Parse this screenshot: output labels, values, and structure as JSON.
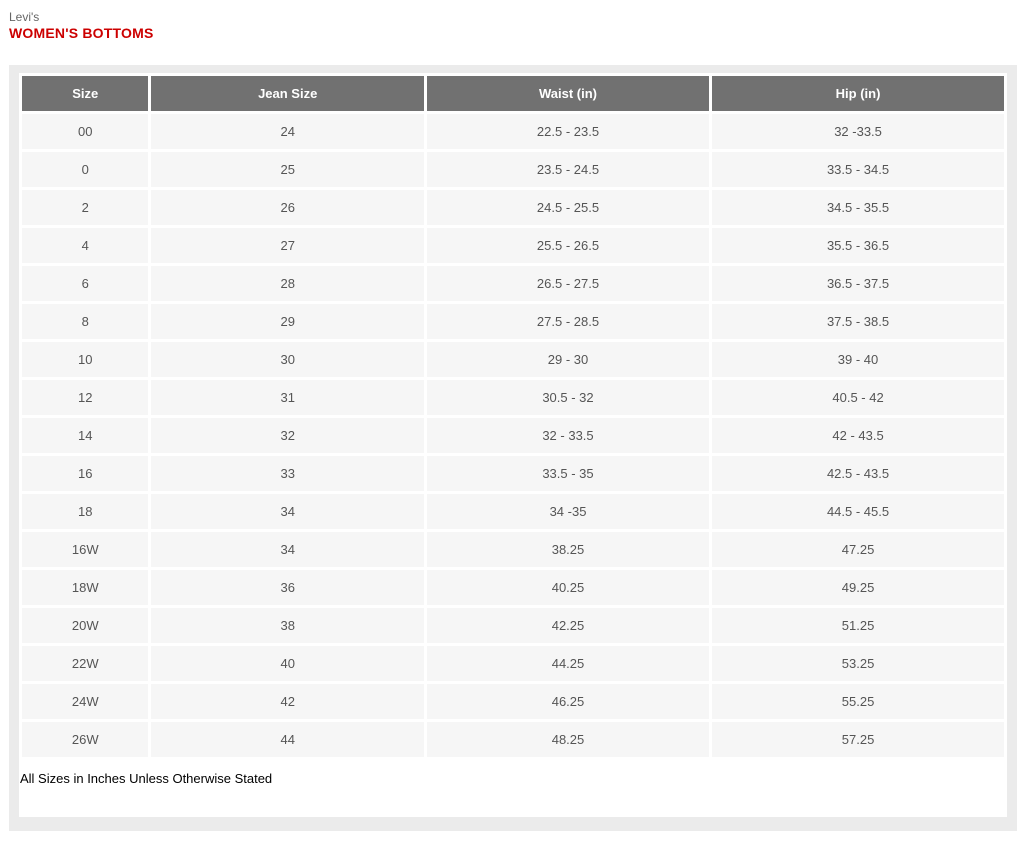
{
  "page": {
    "brand": "Levi's",
    "title": "WOMEN'S BOTTOMS",
    "footnote": "All Sizes in Inches Unless Otherwise Stated"
  },
  "colors": {
    "title_red": "#cc0000",
    "header_bg": "#717171",
    "header_text": "#ffffff",
    "row_bg": "#f6f6f6",
    "row_text": "#555555",
    "panel_frame": "#ebebeb",
    "page_bg": "#ffffff"
  },
  "chart_data": {
    "type": "table",
    "title": "Levi's Women's Bottoms Size Chart",
    "columns": [
      "Size",
      "Jean Size",
      "Waist (in)",
      "Hip (in)"
    ],
    "rows": [
      [
        "00",
        "24",
        "22.5 - 23.5",
        "32 -33.5"
      ],
      [
        "0",
        "25",
        "23.5 - 24.5",
        "33.5 - 34.5"
      ],
      [
        "2",
        "26",
        "24.5 - 25.5",
        "34.5 - 35.5"
      ],
      [
        "4",
        "27",
        "25.5 - 26.5",
        "35.5 - 36.5"
      ],
      [
        "6",
        "28",
        "26.5 - 27.5",
        "36.5 - 37.5"
      ],
      [
        "8",
        "29",
        "27.5 - 28.5",
        "37.5 - 38.5"
      ],
      [
        "10",
        "30",
        "29 - 30",
        "39 - 40"
      ],
      [
        "12",
        "31",
        "30.5 - 32",
        "40.5 - 42"
      ],
      [
        "14",
        "32",
        "32 - 33.5",
        "42 - 43.5"
      ],
      [
        "16",
        "33",
        "33.5 - 35",
        "42.5 - 43.5"
      ],
      [
        "18",
        "34",
        "34 -35",
        "44.5 - 45.5"
      ],
      [
        "16W",
        "34",
        "38.25",
        "47.25"
      ],
      [
        "18W",
        "36",
        "40.25",
        "49.25"
      ],
      [
        "20W",
        "38",
        "42.25",
        "51.25"
      ],
      [
        "22W",
        "40",
        "44.25",
        "53.25"
      ],
      [
        "24W",
        "42",
        "46.25",
        "55.25"
      ],
      [
        "26W",
        "44",
        "48.25",
        "57.25"
      ]
    ]
  }
}
